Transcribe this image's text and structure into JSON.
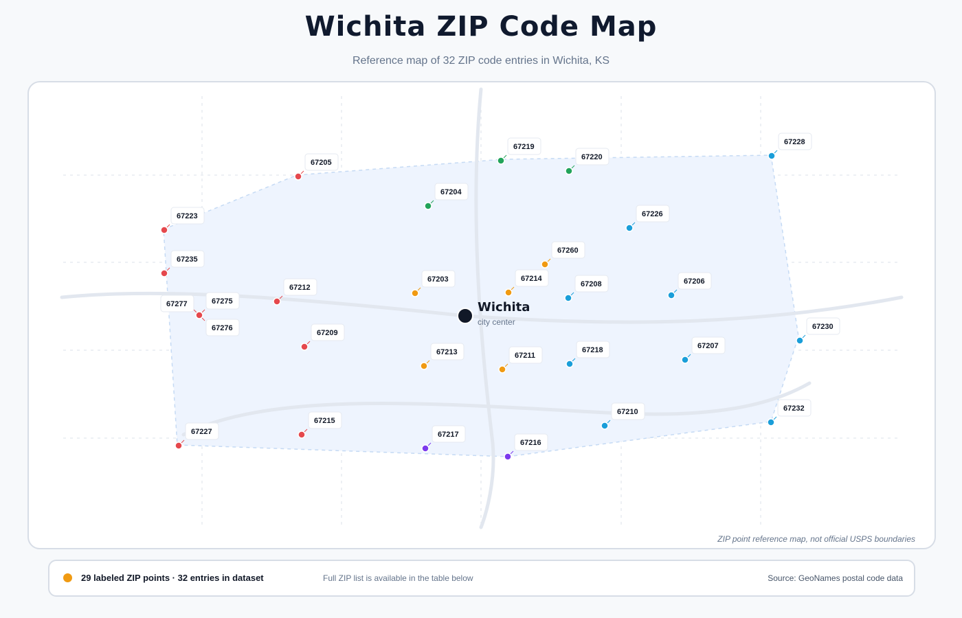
{
  "header": {
    "title": "Wichita ZIP Code Map",
    "subtitle": "Reference map of 32 ZIP code entries in Wichita, KS"
  },
  "map": {
    "city": {
      "name": "Wichita",
      "sublabel": "city center",
      "color": "#111827"
    },
    "disclaimer": "ZIP point reference map, not official USPS boundaries",
    "colors": {
      "red": "#e5484d",
      "green": "#22a35a",
      "orange": "#f09a12",
      "blue": "#1a9ed9",
      "purple": "#7c3aed",
      "area_fill": "#eef4fe",
      "area_stroke": "#c5daf4",
      "road": "#e2e7ef",
      "grid": "#dbe2ea"
    },
    "zips": [
      {
        "zip": "67205",
        "color": "red"
      },
      {
        "zip": "67223",
        "color": "red"
      },
      {
        "zip": "67235",
        "color": "red"
      },
      {
        "zip": "67212",
        "color": "red"
      },
      {
        "zip": "67277",
        "color": "red"
      },
      {
        "zip": "67275",
        "color": "red"
      },
      {
        "zip": "67276",
        "color": "red"
      },
      {
        "zip": "67209",
        "color": "red"
      },
      {
        "zip": "67227",
        "color": "red"
      },
      {
        "zip": "67215",
        "color": "red"
      },
      {
        "zip": "67219",
        "color": "green"
      },
      {
        "zip": "67220",
        "color": "green"
      },
      {
        "zip": "67204",
        "color": "green"
      },
      {
        "zip": "67260",
        "color": "orange"
      },
      {
        "zip": "67203",
        "color": "orange"
      },
      {
        "zip": "67214",
        "color": "orange"
      },
      {
        "zip": "67213",
        "color": "orange"
      },
      {
        "zip": "67211",
        "color": "orange"
      },
      {
        "zip": "67228",
        "color": "blue"
      },
      {
        "zip": "67226",
        "color": "blue"
      },
      {
        "zip": "67208",
        "color": "blue"
      },
      {
        "zip": "67206",
        "color": "blue"
      },
      {
        "zip": "67230",
        "color": "blue"
      },
      {
        "zip": "67218",
        "color": "blue"
      },
      {
        "zip": "67207",
        "color": "blue"
      },
      {
        "zip": "67210",
        "color": "blue"
      },
      {
        "zip": "67232",
        "color": "blue"
      },
      {
        "zip": "67217",
        "color": "purple"
      },
      {
        "zip": "67216",
        "color": "purple"
      }
    ]
  },
  "footer": {
    "legend_color": "#f09a12",
    "count_text": "29 labeled ZIP points · 32 entries in dataset",
    "note": "Full ZIP list is available in the table below",
    "source": "Source: GeoNames postal code data"
  }
}
